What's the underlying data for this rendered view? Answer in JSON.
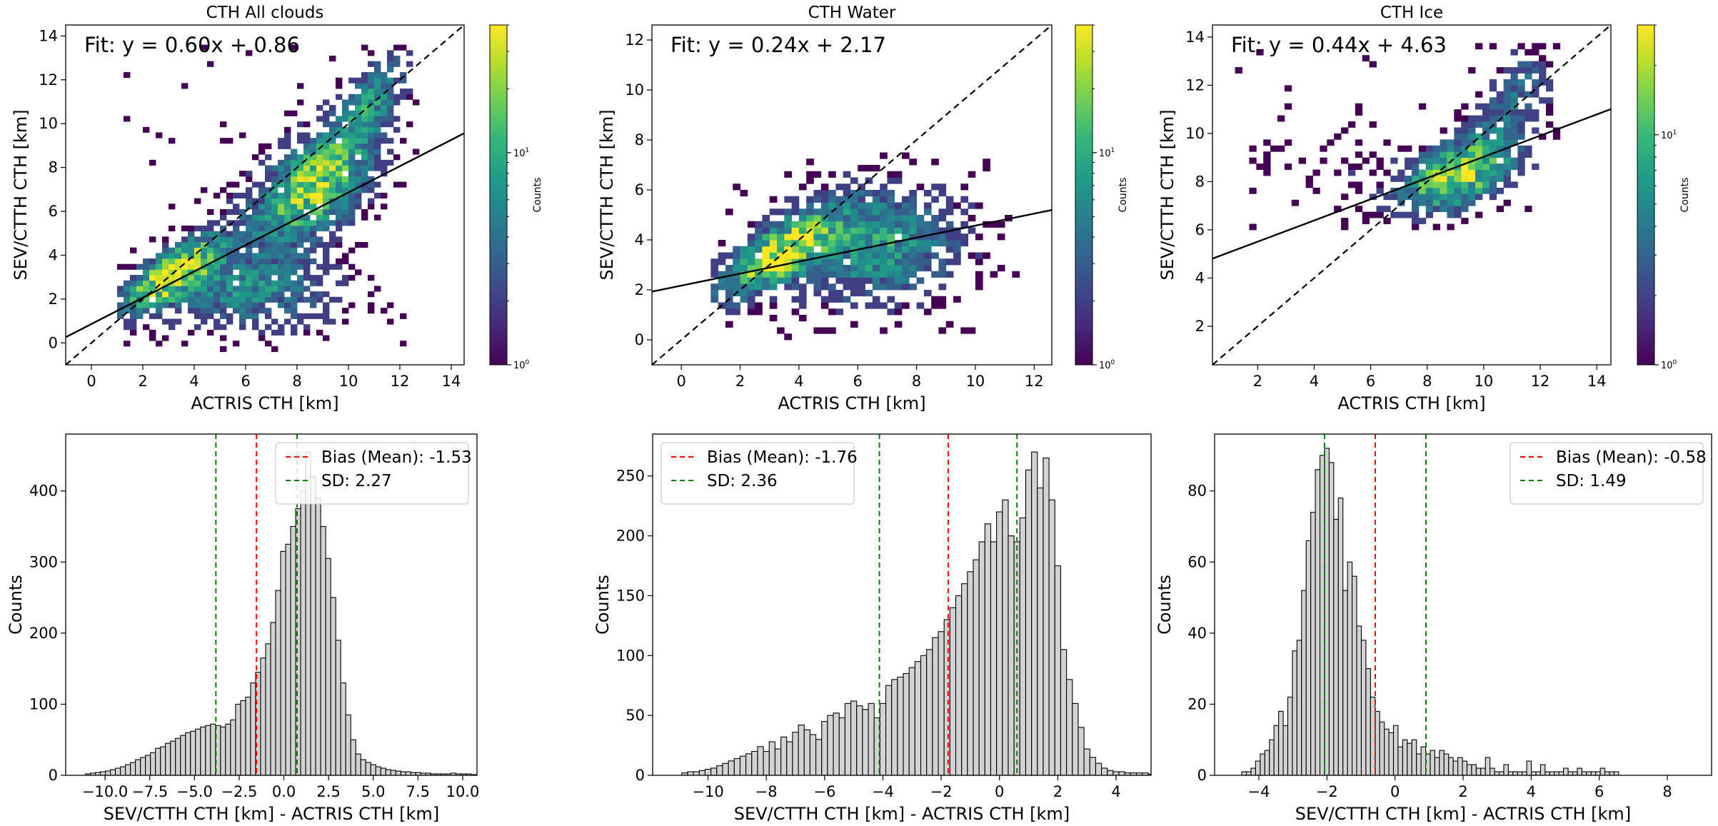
{
  "colors": {
    "bar_fill": "#d3d3d3",
    "bar_edge": "#000000",
    "bias_line": "#ff0000",
    "sd_line": "#008000",
    "fit_line": "#000000",
    "identity_line": "#000000",
    "colormap": [
      "#440154",
      "#482878",
      "#3e4989",
      "#31688e",
      "#26828e",
      "#1f9e89",
      "#35b779",
      "#6ece58",
      "#b5de2b",
      "#fde725"
    ]
  },
  "chart_data": [
    {
      "type": "heatmap",
      "title": "CTH All clouds",
      "xlabel": "ACTRIS CTH [km]",
      "ylabel": "SEV/CTTH CTH [km]",
      "xlim": [
        -1,
        14.5
      ],
      "ylim": [
        -1,
        14.5
      ],
      "xticks": [
        0,
        2,
        4,
        6,
        8,
        10,
        12,
        14
      ],
      "yticks": [
        0,
        2,
        4,
        6,
        8,
        10,
        12,
        14
      ],
      "fit_text": "Fit: y = 0.60x + 0.86",
      "fit": {
        "slope": 0.6,
        "intercept": 0.86
      },
      "identity_line": true,
      "colorbar": {
        "label": "Counts",
        "scale": "log",
        "min": 1,
        "max": 40,
        "ticks": [
          {
            "base": "10",
            "exp": "0",
            "value": 1
          },
          {
            "base": "10",
            "exp": "1",
            "value": 10
          }
        ]
      },
      "clusters": [
        {
          "cx": 3.0,
          "cy": 3.0,
          "sx": 1.3,
          "sy": 1.2,
          "w": 1.0,
          "rho": 0.75
        },
        {
          "cx": 8.5,
          "cy": 7.0,
          "sx": 1.6,
          "sy": 1.8,
          "w": 0.9,
          "rho": 0.5
        },
        {
          "cx": 6.0,
          "cy": 2.3,
          "sx": 2.3,
          "sy": 1.3,
          "w": 0.5,
          "rho": 0.0
        },
        {
          "cx": 10.8,
          "cy": 11.0,
          "sx": 1.0,
          "sy": 1.5,
          "w": 0.5,
          "rho": 0.6
        }
      ],
      "data_bounds": {
        "x": [
          1.0,
          12.6
        ],
        "y": [
          -0.4,
          13.6
        ]
      }
    },
    {
      "type": "heatmap",
      "title": "CTH Water",
      "xlabel": "ACTRIS CTH [km]",
      "ylabel": "SEV/CTTH CTH [km]",
      "xlim": [
        -1,
        12.6
      ],
      "ylim": [
        -1,
        12.6
      ],
      "xticks": [
        0,
        2,
        4,
        6,
        8,
        10,
        12
      ],
      "yticks": [
        0,
        2,
        4,
        6,
        8,
        10,
        12
      ],
      "fit_text": "Fit: y = 0.24x + 2.17",
      "fit": {
        "slope": 0.24,
        "intercept": 2.17
      },
      "identity_line": true,
      "colorbar": {
        "label": "Counts",
        "scale": "log",
        "min": 1,
        "max": 40,
        "ticks": [
          {
            "base": "10",
            "exp": "0",
            "value": 1
          },
          {
            "base": "10",
            "exp": "1",
            "value": 10
          }
        ]
      },
      "clusters": [
        {
          "cx": 3.0,
          "cy": 3.2,
          "sx": 1.3,
          "sy": 1.1,
          "w": 1.0,
          "rho": 0.7
        },
        {
          "cx": 6.5,
          "cy": 3.7,
          "sx": 2.0,
          "sy": 1.6,
          "w": 0.6,
          "rho": 0.1
        }
      ],
      "data_bounds": {
        "x": [
          1.0,
          11.5
        ],
        "y": [
          0.0,
          7.4
        ]
      }
    },
    {
      "type": "heatmap",
      "title": "CTH Ice",
      "xlabel": "ACTRIS CTH [km]",
      "ylabel": "SEV/CTTH CTH [km]",
      "xlim": [
        0.4,
        14.5
      ],
      "ylim": [
        0.4,
        14.5
      ],
      "xticks": [
        2,
        4,
        6,
        8,
        10,
        12,
        14
      ],
      "yticks": [
        2,
        4,
        6,
        8,
        10,
        12,
        14
      ],
      "fit_text": "Fit: y = 0.44x + 4.63",
      "fit": {
        "slope": 0.44,
        "intercept": 4.63
      },
      "identity_line": true,
      "colorbar": {
        "label": "Counts",
        "scale": "log",
        "min": 1,
        "max": 30,
        "ticks": [
          {
            "base": "10",
            "exp": "0",
            "value": 1
          },
          {
            "base": "10",
            "exp": "1",
            "value": 10
          }
        ]
      },
      "clusters": [
        {
          "cx": 9.0,
          "cy": 8.2,
          "sx": 1.4,
          "sy": 1.1,
          "w": 1.0,
          "rho": 0.5
        },
        {
          "cx": 11.0,
          "cy": 11.5,
          "sx": 0.9,
          "sy": 1.3,
          "w": 0.4,
          "rho": 0.5
        },
        {
          "cx": 4.0,
          "cy": 8.5,
          "sx": 1.8,
          "sy": 0.9,
          "w": 0.12,
          "rho": 0.0
        }
      ],
      "data_bounds": {
        "x": [
          1.2,
          12.6
        ],
        "y": [
          6.0,
          13.6
        ]
      }
    },
    {
      "type": "bar",
      "title": "",
      "xlabel": "SEV/CTTH CTH [km] - ACTRIS CTH [km]",
      "ylabel": "Counts",
      "xlim": [
        -12.2,
        10.8
      ],
      "ylim": [
        0,
        480
      ],
      "xticks": [
        {
          "value": -10,
          "label": "−10.0"
        },
        {
          "value": -7.5,
          "label": "−7.5"
        },
        {
          "value": -5,
          "label": "−5.0"
        },
        {
          "value": -2.5,
          "label": "−2.5"
        },
        {
          "value": 0,
          "label": "0.0"
        },
        {
          "value": 2.5,
          "label": "2.5"
        },
        {
          "value": 5,
          "label": "5.0"
        },
        {
          "value": 7.5,
          "label": "7.5"
        },
        {
          "value": 10,
          "label": "10.0"
        }
      ],
      "yticks": [
        0,
        100,
        200,
        300,
        400
      ],
      "bins": {
        "start": -11.1,
        "width": 0.28
      },
      "values": [
        2,
        3,
        4,
        5,
        6,
        8,
        10,
        12,
        15,
        18,
        22,
        25,
        28,
        32,
        38,
        40,
        45,
        48,
        52,
        56,
        60,
        62,
        65,
        68,
        70,
        72,
        70,
        68,
        72,
        78,
        100,
        105,
        110,
        130,
        145,
        165,
        185,
        215,
        260,
        315,
        325,
        350,
        375,
        400,
        455,
        420,
        390,
        350,
        305,
        250,
        190,
        130,
        85,
        50,
        30,
        22,
        18,
        15,
        12,
        10,
        8,
        7,
        6,
        5,
        5,
        4,
        4,
        3,
        3,
        2,
        2,
        2,
        2,
        3,
        2,
        2,
        2,
        1,
        1,
        3,
        1
      ],
      "bias": {
        "value": -1.53,
        "label": "Bias (Mean): -1.53"
      },
      "sd": {
        "value": 2.27,
        "label": "SD: 2.27"
      },
      "legend_loc": "upper right"
    },
    {
      "type": "bar",
      "title": "",
      "xlabel": "SEV/CTTH CTH [km] - ACTRIS CTH [km]",
      "ylabel": "Counts",
      "xlim": [
        -11.9,
        5.2
      ],
      "ylim": [
        0,
        285
      ],
      "xticks": [
        {
          "value": -10,
          "label": "−10"
        },
        {
          "value": -8,
          "label": "−8"
        },
        {
          "value": -6,
          "label": "−6"
        },
        {
          "value": -4,
          "label": "−4"
        },
        {
          "value": -2,
          "label": "−2"
        },
        {
          "value": 0,
          "label": "0"
        },
        {
          "value": 2,
          "label": "2"
        },
        {
          "value": 4,
          "label": "4"
        }
      ],
      "yticks": [
        0,
        50,
        100,
        150,
        200,
        250
      ],
      "bins": {
        "start": -10.9,
        "width": 0.2
      },
      "values": [
        2,
        3,
        3,
        4,
        5,
        6,
        8,
        10,
        12,
        14,
        16,
        18,
        20,
        24,
        20,
        28,
        22,
        32,
        28,
        36,
        42,
        38,
        34,
        30,
        45,
        50,
        52,
        48,
        60,
        62,
        58,
        55,
        60,
        48,
        60,
        75,
        80,
        82,
        85,
        90,
        95,
        100,
        105,
        115,
        120,
        130,
        140,
        150,
        160,
        170,
        180,
        195,
        210,
        195,
        220,
        230,
        200,
        195,
        215,
        255,
        270,
        240,
        265,
        230,
        175,
        105,
        80,
        60,
        40,
        22,
        15,
        10,
        6,
        4,
        3,
        3,
        2,
        2,
        2,
        2,
        1,
        1,
        1
      ],
      "bias": {
        "value": -1.76,
        "label": "Bias (Mean): -1.76"
      },
      "sd": {
        "value": 2.36,
        "label": "SD: 2.36"
      },
      "legend_loc": "upper left"
    },
    {
      "type": "bar",
      "title": "",
      "xlabel": "SEV/CTTH CTH [km] - ACTRIS CTH [km]",
      "ylabel": "Counts",
      "xlim": [
        -5.3,
        9.3
      ],
      "ylim": [
        0,
        96
      ],
      "xticks": [
        {
          "value": -4,
          "label": "−4"
        },
        {
          "value": -2,
          "label": "−2"
        },
        {
          "value": 0,
          "label": "0"
        },
        {
          "value": 2,
          "label": "2"
        },
        {
          "value": 4,
          "label": "4"
        },
        {
          "value": 6,
          "label": "6"
        },
        {
          "value": 8,
          "label": "8"
        }
      ],
      "yticks": [
        0,
        20,
        40,
        60,
        80
      ],
      "bins": {
        "start": -4.5,
        "width": 0.135
      },
      "values": [
        1,
        1,
        2,
        4,
        6,
        7,
        10,
        14,
        18,
        14,
        22,
        35,
        38,
        52,
        66,
        74,
        86,
        90,
        92,
        88,
        72,
        78,
        52,
        60,
        56,
        42,
        38,
        30,
        22,
        18,
        15,
        13,
        12,
        14,
        8,
        10,
        9,
        10,
        6,
        8,
        6,
        7,
        5,
        7,
        6,
        5,
        4,
        5,
        4,
        3,
        3,
        2,
        2,
        5,
        2,
        1,
        1,
        3,
        1,
        1,
        1,
        1,
        4,
        1,
        1,
        3,
        1,
        1,
        1,
        1,
        2,
        1,
        1,
        2,
        1,
        1,
        1,
        1,
        2,
        1,
        1,
        1
      ],
      "bias": {
        "value": -0.58,
        "label": "Bias (Mean): -0.58"
      },
      "sd": {
        "value": 1.49,
        "label": "SD: 1.49"
      },
      "legend_loc": "upper right"
    }
  ]
}
